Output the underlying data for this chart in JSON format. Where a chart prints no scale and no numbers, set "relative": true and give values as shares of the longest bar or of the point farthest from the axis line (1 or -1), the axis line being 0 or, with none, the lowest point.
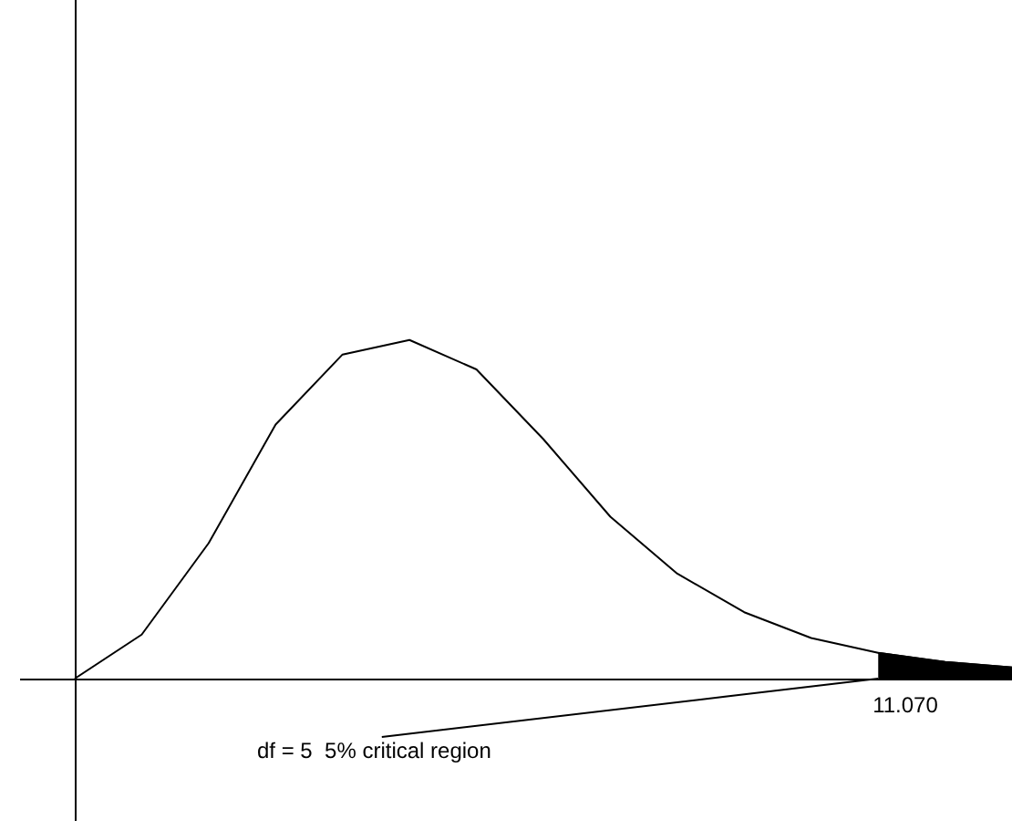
{
  "chart_data": {
    "type": "line",
    "relative": true,
    "annotations": [
      "11.070",
      "df = 5  5% critical region"
    ],
    "marker": "none",
    "categories": [
      null,
      null,
      null,
      null,
      null,
      null,
      null,
      null,
      null,
      null,
      null,
      null,
      null,
      null,
      null
    ],
    "series": [
      {
        "color": "#000000",
        "values": [
          0,
          0.13,
          0.4,
          0.75,
          0.957,
          1.0,
          0.913,
          0.707,
          0.478,
          0.31,
          0.196,
          0.12,
          0.076,
          0.049,
          0.033
        ]
      },
      {
        "type": "area",
        "color": "#000000",
        "values": [
          null,
          null,
          null,
          null,
          null,
          null,
          null,
          null,
          null,
          null,
          null,
          null,
          0.076,
          0.049,
          0.033
        ]
      }
    ]
  }
}
